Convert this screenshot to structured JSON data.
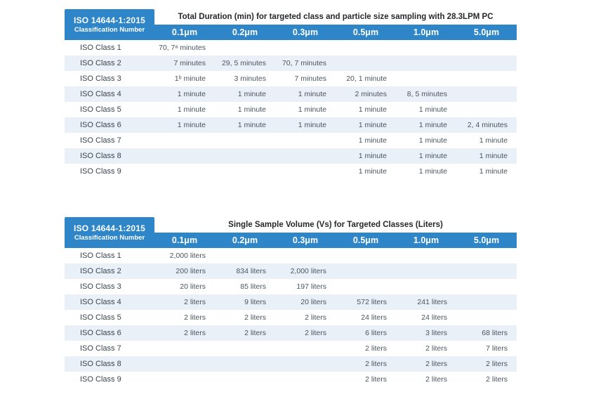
{
  "colors": {
    "accent": "#2E86C8",
    "stripe": "#E9F0F8",
    "header_text": "#FFFFFF",
    "body_text": "#4A5560"
  },
  "tables": [
    {
      "corner_title": "ISO 14644-1:2015",
      "corner_subtitle": "Classification Number",
      "title": "Total Duration (min) for targeted class and particle size sampling with 28.3LPM PC",
      "columns": [
        "0.1μm",
        "0.2μm",
        "0.3μm",
        "0.5μm",
        "1.0μm",
        "5.0μm"
      ],
      "rows": [
        {
          "label": "ISO Class 1",
          "values": [
            "70, 7ᵃ minutes",
            "",
            "",
            "",
            "",
            ""
          ]
        },
        {
          "label": "ISO Class 2",
          "values": [
            "7 minutes",
            "29, 5 minutes",
            "70, 7 minutes",
            "",
            "",
            ""
          ]
        },
        {
          "label": "ISO Class 3",
          "values": [
            "1ᵇ minute",
            "3 minutes",
            "7 minutes",
            "20, 1 minute",
            "",
            ""
          ]
        },
        {
          "label": "ISO Class 4",
          "values": [
            "1 minute",
            "1 minute",
            "1 minute",
            "2 minutes",
            "8, 5 minutes",
            ""
          ]
        },
        {
          "label": "ISO Class 5",
          "values": [
            "1 minute",
            "1 minute",
            "1 minute",
            "1 minute",
            "1 minute",
            ""
          ]
        },
        {
          "label": "ISO Class 6",
          "values": [
            "1 minute",
            "1 minute",
            "1 minute",
            "1 minute",
            "1 minute",
            "2, 4 minutes"
          ]
        },
        {
          "label": "ISO Class 7",
          "values": [
            "",
            "",
            "",
            "1 minute",
            "1 minute",
            "1 minute"
          ]
        },
        {
          "label": "ISO Class 8",
          "values": [
            "",
            "",
            "",
            "1 minute",
            "1 minute",
            "1 minute"
          ]
        },
        {
          "label": "ISO Class 9",
          "values": [
            "",
            "",
            "",
            "1 minute",
            "1 minute",
            "1 minute"
          ]
        }
      ]
    },
    {
      "corner_title": "ISO 14644-1:2015",
      "corner_subtitle": "Classification Number",
      "title": "Single Sample Volume (Vs) for Targeted Classes (Liters)",
      "columns": [
        "0.1μm",
        "0.2μm",
        "0.3μm",
        "0.5μm",
        "1.0μm",
        "5.0μm"
      ],
      "rows": [
        {
          "label": "ISO Class 1",
          "values": [
            "2,000 liters",
            "",
            "",
            "",
            "",
            ""
          ]
        },
        {
          "label": "ISO Class 2",
          "values": [
            "200 liters",
            "834 liters",
            "2,000 liters",
            "",
            "",
            ""
          ]
        },
        {
          "label": "ISO Class 3",
          "values": [
            "20 liters",
            "85 liters",
            "197 liters",
            "",
            "",
            ""
          ]
        },
        {
          "label": "ISO Class 4",
          "values": [
            "2 liters",
            "9 liters",
            "20 liters",
            "572 liters",
            "241 liters",
            ""
          ]
        },
        {
          "label": "ISO Class 5",
          "values": [
            "2 liters",
            "2 liters",
            "2 liters",
            "24 liters",
            "24 liters",
            ""
          ]
        },
        {
          "label": "ISO Class 6",
          "values": [
            "2 liters",
            "2 liters",
            "2 liters",
            "6 liters",
            "3 liters",
            "68 liters"
          ]
        },
        {
          "label": "ISO Class 7",
          "values": [
            "",
            "",
            "",
            "2 liters",
            "2 liters",
            "7 liters"
          ]
        },
        {
          "label": "ISO Class 8",
          "values": [
            "",
            "",
            "",
            "2 liters",
            "2 liters",
            "2 liters"
          ]
        },
        {
          "label": "ISO Class 9",
          "values": [
            "",
            "",
            "",
            "2 liters",
            "2 liters",
            "2 liters"
          ]
        }
      ]
    }
  ]
}
